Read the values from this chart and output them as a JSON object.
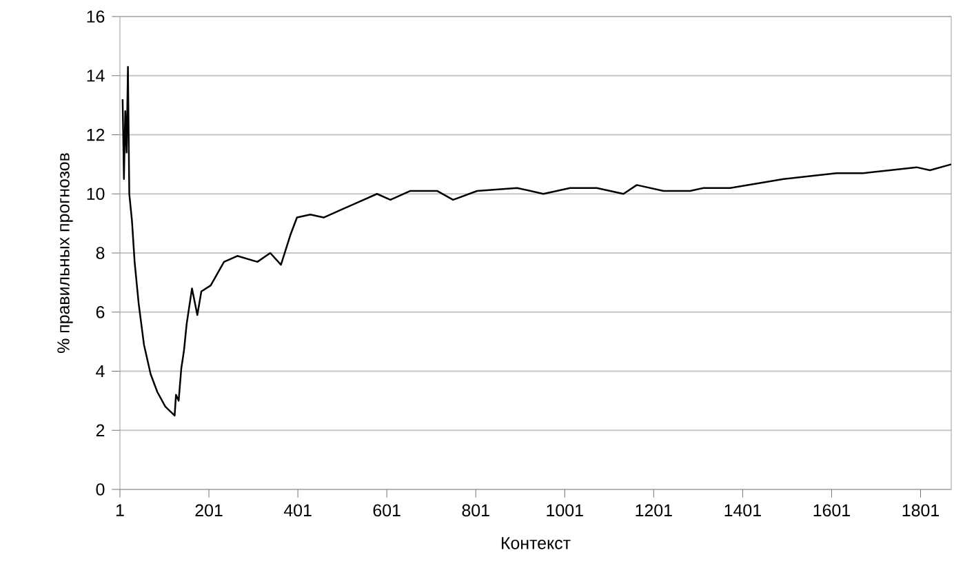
{
  "chart_data": {
    "type": "line",
    "xlabel": "Контекст",
    "ylabel": "% правильных прогнозов",
    "x": [
      7,
      10,
      13,
      16,
      19,
      22,
      28,
      34,
      43,
      55,
      70,
      85,
      103,
      124,
      127,
      133,
      139,
      145,
      151,
      163,
      175,
      184,
      205,
      235,
      265,
      310,
      339,
      363,
      384,
      399,
      429,
      459,
      504,
      534,
      579,
      609,
      654,
      714,
      750,
      804,
      894,
      953,
      1013,
      1073,
      1133,
      1163,
      1223,
      1283,
      1313,
      1373,
      1433,
      1493,
      1552,
      1612,
      1672,
      1732,
      1792,
      1822,
      1870
    ],
    "values": [
      13.2,
      10.5,
      12.8,
      11.4,
      14.3,
      10.0,
      9.1,
      7.7,
      6.3,
      4.9,
      3.9,
      3.3,
      2.8,
      2.5,
      3.2,
      3.0,
      4.1,
      4.7,
      5.6,
      6.8,
      5.9,
      6.7,
      6.9,
      7.7,
      7.9,
      7.7,
      8.0,
      7.6,
      8.6,
      9.2,
      9.3,
      9.2,
      9.5,
      9.7,
      10.0,
      9.8,
      10.1,
      10.1,
      9.8,
      10.1,
      10.2,
      10.0,
      10.2,
      10.2,
      10.0,
      10.3,
      10.1,
      10.1,
      10.2,
      10.2,
      10.35,
      10.5,
      10.6,
      10.7,
      10.7,
      10.8,
      10.9,
      10.8,
      11.0
    ],
    "color": "#000000",
    "xlim": [
      1,
      1870
    ],
    "ylim": [
      0,
      16
    ],
    "xticks": [
      1,
      201,
      401,
      601,
      801,
      1001,
      1201,
      1401,
      1601,
      1801
    ],
    "yticks": [
      0,
      2,
      4,
      6,
      8,
      10,
      12,
      14,
      16
    ],
    "grid": "y",
    "marker": "none",
    "line_style": "solid"
  }
}
